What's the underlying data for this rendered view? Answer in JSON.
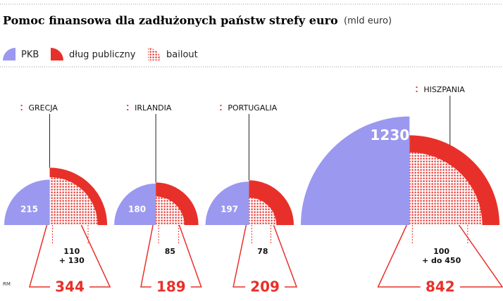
{
  "chart_data": {
    "type": "quarter-area",
    "title": "Pomoc finansowa dla zadłużonych państw strefy euro",
    "subtitle": "(mld euro)",
    "credit": "RM",
    "categories": [
      "GRECJA",
      "IRLANDIA",
      "PORTUGALIA",
      "HISZPANIA"
    ],
    "series": [
      {
        "name": "PKB",
        "color": "#9b98f0",
        "values": [
          215,
          180,
          197,
          1230
        ]
      },
      {
        "name": "dług publiczny",
        "color": "#e8302a",
        "values": [
          344,
          189,
          209,
          842
        ]
      },
      {
        "name": "bailout",
        "color": "#e8302a",
        "values": [
          240,
          85,
          78,
          550
        ],
        "value_labels": [
          "110\n+ 130",
          "85",
          "78",
          "100\n+ do 450"
        ]
      }
    ]
  }
}
